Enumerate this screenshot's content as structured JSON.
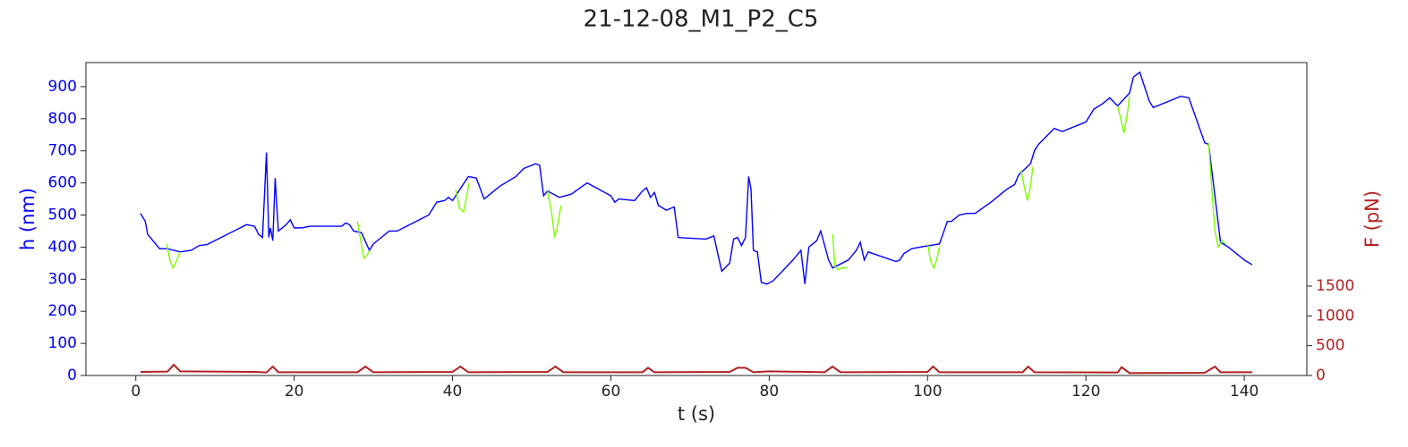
{
  "chart_data": {
    "type": "line",
    "title": "21-12-08_M1_P2_C5",
    "xlabel": "t (s)",
    "ylabel": "h (nm)",
    "y2label": "F (pN)",
    "xlim": [
      -6.3,
      147.9
    ],
    "xticks": [
      0,
      20,
      40,
      60,
      80,
      100,
      120,
      140
    ],
    "ylim": [
      0,
      975
    ],
    "yticks": [
      0,
      100,
      200,
      300,
      400,
      500,
      600,
      700,
      800,
      900
    ],
    "y2lim": [
      0,
      5250
    ],
    "y2ticks": [
      0,
      500,
      1000,
      1500
    ],
    "series": [
      {
        "color": "#0000ff",
        "x": [
          0.6,
          1.2,
          1.5,
          3,
          4,
          5.6,
          7,
          8,
          9,
          14,
          15,
          15.5,
          16,
          16.5,
          16.8,
          17,
          17.3,
          17.6,
          18,
          19,
          19.5,
          20,
          21,
          22,
          26,
          26.5,
          27,
          27.5,
          28.5,
          29.5,
          30,
          31,
          32,
          33,
          37,
          38,
          39,
          39.5,
          40,
          42,
          43,
          44,
          46,
          48,
          49,
          50.5,
          51,
          51.5,
          52,
          53.5,
          55,
          57,
          60,
          60.5,
          61,
          63,
          64,
          64.5,
          65,
          65.5,
          66,
          67,
          68,
          68.5,
          72,
          73,
          74,
          75,
          75.5,
          76,
          76.5,
          77,
          77.4,
          77.7,
          78,
          78.5,
          79,
          79.7,
          80.5,
          83,
          84,
          84.5,
          85,
          86,
          86.5,
          87.5,
          88,
          90,
          91,
          91.5,
          92,
          92.5,
          96,
          96.5,
          97,
          98,
          99,
          101.5,
          102.5,
          103,
          104,
          105,
          106,
          108,
          109,
          110,
          111,
          111.5,
          113,
          113.5,
          114,
          116,
          117,
          120,
          121,
          122,
          123,
          124,
          125.5,
          126,
          126.8,
          128,
          128.5,
          132,
          133,
          133.5,
          135,
          135.5,
          137,
          138,
          140,
          141
        ],
        "values": [
          505,
          480,
          440,
          395,
          395,
          385,
          390,
          405,
          408,
          470,
          465,
          440,
          430,
          695,
          430,
          460,
          420,
          615,
          450,
          470,
          485,
          460,
          460,
          465,
          465,
          475,
          470,
          450,
          445,
          390,
          410,
          430,
          450,
          450,
          500,
          540,
          545,
          555,
          545,
          620,
          615,
          550,
          590,
          620,
          645,
          660,
          655,
          560,
          575,
          555,
          565,
          600,
          560,
          540,
          550,
          545,
          575,
          585,
          555,
          570,
          530,
          515,
          525,
          430,
          425,
          435,
          325,
          350,
          425,
          430,
          405,
          430,
          620,
          580,
          390,
          385,
          290,
          285,
          295,
          360,
          390,
          285,
          400,
          420,
          450,
          360,
          335,
          360,
          390,
          415,
          360,
          385,
          355,
          360,
          380,
          395,
          400,
          410,
          480,
          480,
          500,
          505,
          505,
          540,
          560,
          580,
          595,
          625,
          660,
          700,
          720,
          770,
          760,
          790,
          830,
          845,
          865,
          840,
          880,
          930,
          945,
          855,
          835,
          870,
          865,
          830,
          725,
          720,
          415,
          400,
          360,
          345
        ]
      },
      {
        "color": "#7cfc00",
        "x": [
          3.9,
          4.3,
          4.7,
          5.1,
          5.6,
          null,
          28,
          28.4,
          28.8,
          29.2,
          29.6,
          null,
          40.4,
          40.9,
          41.4,
          41.8,
          42.1,
          null,
          52,
          52.5,
          52.9,
          53.3,
          53.7,
          null,
          88,
          88.3,
          88.7,
          89.2,
          89.8,
          null,
          100,
          100.4,
          100.8,
          101.2,
          101.5,
          null,
          111.8,
          112.2,
          112.6,
          113,
          113.3,
          null,
          124,
          124.4,
          124.8,
          125.2,
          125.5,
          null,
          135.5,
          135.9,
          136.3,
          136.7,
          137.2,
          137.6
        ],
        "values": [
          410,
          360,
          335,
          355,
          385,
          null,
          480,
          420,
          365,
          375,
          390,
          null,
          580,
          520,
          510,
          560,
          600,
          null,
          575,
          510,
          430,
          470,
          530,
          null,
          440,
          340,
          330,
          335,
          335,
          null,
          410,
          355,
          335,
          365,
          400,
          null,
          640,
          590,
          545,
          590,
          650,
          null,
          840,
          800,
          755,
          810,
          870,
          null,
          725,
          580,
          450,
          400,
          420,
          410
        ]
      },
      {
        "color": "#b22222",
        "axis": "y2",
        "x": [
          0.6,
          4,
          4.8,
          5.6,
          15,
          16.5,
          17.3,
          18,
          28,
          29,
          30,
          40,
          41,
          42,
          52,
          53,
          54,
          64,
          64.7,
          65.5,
          75,
          76,
          77,
          78,
          80,
          87,
          88,
          89,
          100,
          100.7,
          101.5,
          112,
          112.7,
          113.5,
          124,
          124.5,
          125.5,
          135,
          136.3,
          137,
          141
        ],
        "values": [
          60,
          65,
          180,
          70,
          60,
          50,
          150,
          55,
          55,
          150,
          55,
          60,
          150,
          55,
          60,
          150,
          55,
          55,
          130,
          55,
          60,
          130,
          130,
          55,
          70,
          55,
          150,
          55,
          60,
          150,
          55,
          55,
          150,
          55,
          50,
          140,
          40,
          45,
          150,
          55,
          55
        ]
      }
    ]
  }
}
